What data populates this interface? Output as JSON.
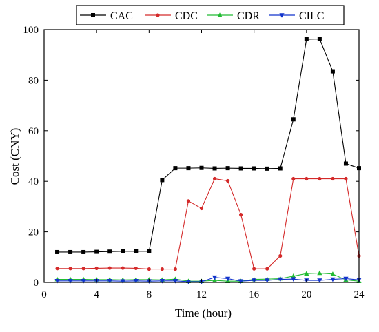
{
  "chart_data": {
    "type": "line",
    "title": "",
    "xlabel": "Time (hour)",
    "ylabel": "Cost (CNY)",
    "xlim": [
      0,
      24
    ],
    "ylim": [
      0,
      100
    ],
    "xticks": [
      0,
      4,
      8,
      12,
      16,
      20,
      24
    ],
    "yticks": [
      0,
      20,
      40,
      60,
      80,
      100
    ],
    "grid": false,
    "legend_position": "top",
    "x": [
      1,
      2,
      3,
      4,
      5,
      6,
      7,
      8,
      9,
      10,
      11,
      12,
      13,
      14,
      15,
      16,
      17,
      18,
      19,
      20,
      21,
      22,
      23,
      24
    ],
    "series": [
      {
        "name": "CAC",
        "color": "#000000",
        "marker": "square",
        "values": [
          12.0,
          12.0,
          12.0,
          12.1,
          12.2,
          12.3,
          12.3,
          12.3,
          40.5,
          45.2,
          45.2,
          45.3,
          45.1,
          45.2,
          45.1,
          45.1,
          45.0,
          45.1,
          64.5,
          96.2,
          96.3,
          83.5,
          47.0,
          45.2
        ]
      },
      {
        "name": "CDC",
        "color": "#d42a2a",
        "marker": "circle",
        "values": [
          5.5,
          5.5,
          5.5,
          5.6,
          5.7,
          5.7,
          5.6,
          5.3,
          5.3,
          5.3,
          32.2,
          29.3,
          41.0,
          40.2,
          26.8,
          5.4,
          5.4,
          10.5,
          41.0,
          41.0,
          41.0,
          41.0,
          41.0,
          10.5
        ]
      },
      {
        "name": "CDR",
        "color": "#22bb33",
        "marker": "triangle-up",
        "values": [
          1.2,
          1.2,
          1.2,
          1.1,
          1.1,
          1.0,
          1.1,
          1.1,
          1.0,
          1.3,
          0.5,
          0.5,
          0.8,
          0.5,
          0.5,
          1.2,
          1.3,
          1.5,
          2.5,
          3.5,
          3.7,
          3.3,
          1.0,
          0.5
        ]
      },
      {
        "name": "CILC",
        "color": "#1133cc",
        "marker": "triangle-down",
        "values": [
          0.6,
          0.6,
          0.6,
          0.6,
          0.6,
          0.5,
          0.6,
          0.5,
          0.6,
          0.6,
          0.3,
          0.3,
          2.0,
          1.5,
          0.5,
          0.8,
          0.8,
          1.2,
          1.3,
          0.8,
          0.8,
          1.2,
          1.5,
          1.0
        ]
      }
    ]
  }
}
